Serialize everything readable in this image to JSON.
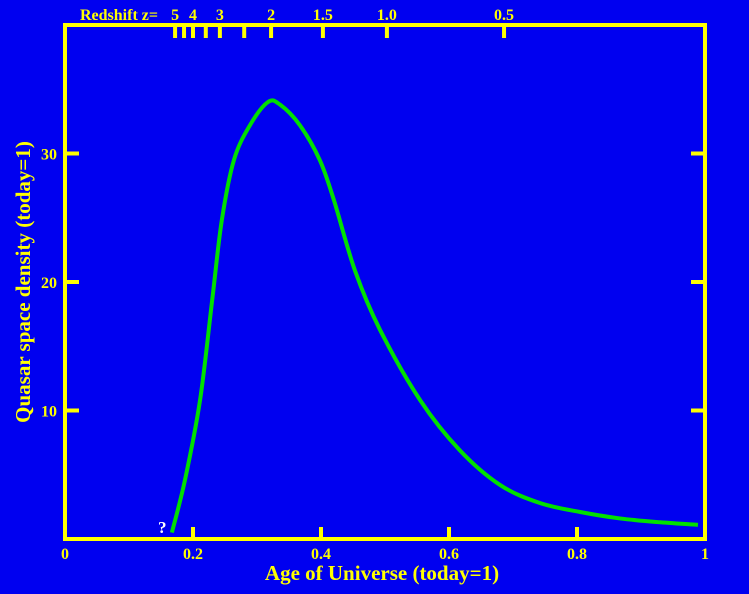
{
  "chart_data": {
    "type": "line",
    "xlabel": "Age of Universe (today=1)",
    "ylabel": "Quasar space density (today=1)",
    "xlim": [
      0,
      1
    ],
    "ylim": [
      0,
      40
    ],
    "x_ticks": [
      "0",
      "0.2",
      "0.4",
      "0.6",
      "0.8",
      "1"
    ],
    "x_tick_values": [
      0,
      0.2,
      0.4,
      0.6,
      0.8,
      1
    ],
    "y_ticks": [
      "10",
      "20",
      "30"
    ],
    "y_tick_values": [
      10,
      20,
      30
    ],
    "top_axis": {
      "label": "Redshift z=",
      "ticks": [
        {
          "z": 5,
          "age": 0.172,
          "label": "5"
        },
        {
          "z": 4.5,
          "age": 0.186,
          "label": ""
        },
        {
          "z": 4,
          "age": 0.2,
          "label": "4"
        },
        {
          "z": 3.5,
          "age": 0.22,
          "label": ""
        },
        {
          "z": 3,
          "age": 0.242,
          "label": "3"
        },
        {
          "z": 2.5,
          "age": 0.28,
          "label": ""
        },
        {
          "z": 2,
          "age": 0.322,
          "label": "2"
        },
        {
          "z": 1.5,
          "age": 0.403,
          "label": "1.5"
        },
        {
          "z": 1.0,
          "age": 0.503,
          "label": "1.0"
        },
        {
          "z": 0.5,
          "age": 0.686,
          "label": "0.5"
        }
      ]
    },
    "annotation": "?",
    "grid": false,
    "colors": {
      "background": "#0000f0",
      "axes": "#ffff00",
      "line": "#00e000",
      "annotation": "#ffffff"
    },
    "series": [
      {
        "x": [
          0.167,
          0.1875,
          0.211,
          0.23,
          0.245,
          0.264,
          0.289,
          0.317,
          0.336,
          0.367,
          0.398,
          0.42,
          0.453,
          0.492,
          0.555,
          0.617,
          0.68,
          0.742,
          0.805,
          0.867,
          0.93,
          0.989
        ],
        "y": [
          0.5,
          4.6,
          10.8,
          18.6,
          24.8,
          29.5,
          32.2,
          34.0,
          33.8,
          32.2,
          29.5,
          26.4,
          20.9,
          16.3,
          10.8,
          6.9,
          4.2,
          2.8,
          2.1,
          1.6,
          1.3,
          1.1
        ]
      }
    ]
  }
}
